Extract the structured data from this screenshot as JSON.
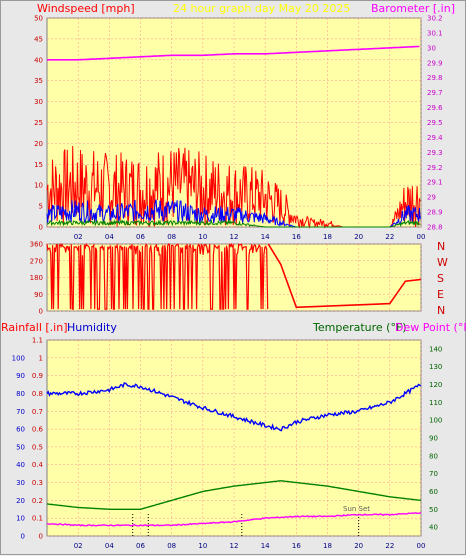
{
  "header": {
    "left_title": "Windspeed [mph]",
    "center_title": "24 hour graph day   May 20 2025",
    "right_title": "Barometer [.in]"
  },
  "middle": {
    "compass": [
      "N",
      "W",
      "S",
      "E",
      "N"
    ]
  },
  "lower_header": {
    "rain_label": "Rainfall [.in]",
    "humidity_label": "Humidity",
    "temp_label": "Temperature (°F)",
    "dew_label": "Dew Point (°F)"
  },
  "annotation": {
    "sunset": "Sun Set"
  },
  "colors": {
    "plot_bg": "#ffffa8",
    "grid": "#ff9090",
    "wind_max": "#ff0000",
    "wind_avg": "#0000ff",
    "wind_min": "#008000",
    "barometer": "#ff00ff",
    "humidity": "#0000ff",
    "temperature": "#008000",
    "dewpoint": "#ff00ff",
    "title_yellow": "#ffff00"
  },
  "chart_data": [
    {
      "type": "line",
      "name": "wind-barometer",
      "x_ticks": [
        "02",
        "04",
        "06",
        "08",
        "10",
        "12",
        "14",
        "16",
        "18",
        "20",
        "22",
        "00"
      ],
      "y_left_ticks": [
        "0",
        "5",
        "10",
        "15",
        "20",
        "25",
        "30",
        "35",
        "40",
        "45",
        "50"
      ],
      "y_left_range": [
        0,
        50
      ],
      "y_right_ticks": [
        "28.8",
        "28.9",
        "29",
        "29.1",
        "29.2",
        "29.3",
        "29.4",
        "29.5",
        "29.6",
        "29.7",
        "29.8",
        "29.9",
        "30",
        "30.1",
        "30.2"
      ],
      "y_right_range": [
        28.8,
        30.2
      ],
      "series": [
        {
          "role": "wind-max",
          "x": [
            0,
            2,
            4,
            6,
            8,
            10,
            12,
            14,
            15,
            16,
            17,
            18,
            19,
            20,
            21,
            22,
            23,
            24
          ],
          "y": [
            9,
            10,
            9,
            9,
            10,
            9,
            8,
            7,
            5,
            2,
            1,
            1,
            0,
            0,
            0,
            0,
            6,
            7
          ]
        },
        {
          "role": "wind-avg",
          "x": [
            0,
            2,
            4,
            6,
            8,
            10,
            12,
            14,
            15,
            16,
            17,
            22,
            23,
            24
          ],
          "y": [
            3,
            4,
            3,
            4,
            4,
            3,
            3,
            2,
            1,
            0,
            0,
            0,
            3,
            3
          ]
        },
        {
          "role": "wind-min",
          "x": [
            0,
            2,
            4,
            6,
            8,
            10,
            12,
            14,
            15,
            16,
            22,
            23,
            24
          ],
          "y": [
            1,
            1,
            1,
            1,
            1,
            1,
            1,
            0,
            0,
            0,
            0,
            1,
            1
          ]
        },
        {
          "role": "barometer",
          "x": [
            0,
            2,
            4,
            6,
            8,
            10,
            12,
            14,
            16,
            18,
            20,
            22,
            24
          ],
          "y": [
            29.92,
            29.92,
            29.93,
            29.94,
            29.95,
            29.95,
            29.96,
            29.96,
            29.97,
            29.98,
            29.99,
            30.0,
            30.01
          ]
        }
      ]
    },
    {
      "type": "scatter",
      "name": "wind-direction",
      "y_ticks": [
        "360",
        "270",
        "180",
        "90",
        "0"
      ],
      "y_range": [
        0,
        360
      ],
      "x_ticks": [
        "02",
        "04",
        "06",
        "08",
        "10",
        "12",
        "14",
        "16",
        "18",
        "20",
        "22",
        "00"
      ],
      "x": [
        0,
        14.2,
        15,
        16,
        22,
        23,
        24
      ],
      "y": [
        360,
        360,
        250,
        20,
        40,
        160,
        170
      ]
    },
    {
      "type": "line",
      "name": "humidity-temperature",
      "x_ticks": [
        "02",
        "04",
        "06",
        "08",
        "10",
        "12",
        "14",
        "16",
        "18",
        "20",
        "22",
        "00"
      ],
      "y_rain_ticks": [
        "0",
        "0.1",
        "0.2",
        "0.3",
        "0.4",
        "0.5",
        "0.6",
        "0.7",
        "0.8",
        "0.9",
        "1",
        "1.1"
      ],
      "y_rain_range": [
        0,
        1.1
      ],
      "y_humidity_ticks": [
        "0",
        "10",
        "20",
        "30",
        "40",
        "50",
        "60",
        "70",
        "80",
        "90",
        "100"
      ],
      "y_humidity_range": [
        0,
        100
      ],
      "y_temp_ticks": [
        "40",
        "50",
        "60",
        "70",
        "80",
        "90",
        "100",
        "110",
        "120",
        "130",
        "140"
      ],
      "y_temp_range": [
        35,
        145
      ],
      "series": [
        {
          "role": "humidity",
          "x": [
            0,
            2,
            4,
            5,
            6,
            8,
            10,
            12,
            14,
            15,
            16,
            18,
            20,
            22,
            23,
            24
          ],
          "y": [
            80,
            80,
            82,
            85,
            84,
            78,
            72,
            67,
            62,
            60,
            64,
            68,
            70,
            75,
            80,
            85
          ]
        },
        {
          "role": "temperature",
          "x": [
            0,
            2,
            4,
            6,
            8,
            10,
            12,
            14,
            15,
            16,
            18,
            20,
            22,
            24
          ],
          "y": [
            53,
            51,
            50,
            50,
            55,
            60,
            63,
            65,
            66,
            65,
            63,
            60,
            57,
            55
          ]
        },
        {
          "role": "dewpoint",
          "x": [
            0,
            2,
            4,
            6,
            8,
            10,
            12,
            14,
            16,
            18,
            20,
            22,
            24
          ],
          "y": [
            42,
            41,
            41,
            41,
            41,
            42,
            43,
            45,
            46,
            46,
            47,
            47,
            48
          ]
        }
      ],
      "tick_marks_x": [
        5.5,
        6.5,
        12.5,
        20
      ]
    }
  ]
}
